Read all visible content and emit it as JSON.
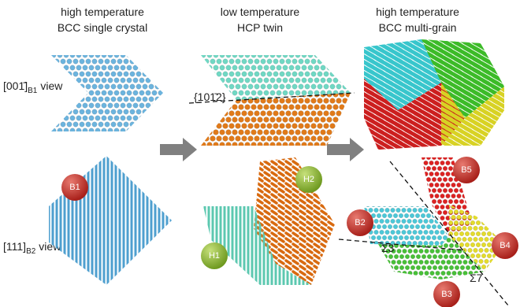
{
  "column_headers": [
    {
      "line1": "high temperature",
      "line2": "BCC single crystal"
    },
    {
      "line1": "low temperature",
      "line2": "HCP twin"
    },
    {
      "line1": "high temperature",
      "line2": "BCC multi-grain"
    }
  ],
  "row_labels": [
    {
      "direction": "[001̄]",
      "subscript": "B1",
      "text": "view"
    },
    {
      "direction": "[111]",
      "subscript": "B2",
      "text": "view"
    }
  ],
  "plane_label": "{101̄2}",
  "grain_labels": [
    "B1",
    "H2",
    "H1",
    "B5",
    "B2",
    "B4",
    "B3"
  ],
  "boundary_labels": [
    "Σ3",
    "Σ7"
  ]
}
